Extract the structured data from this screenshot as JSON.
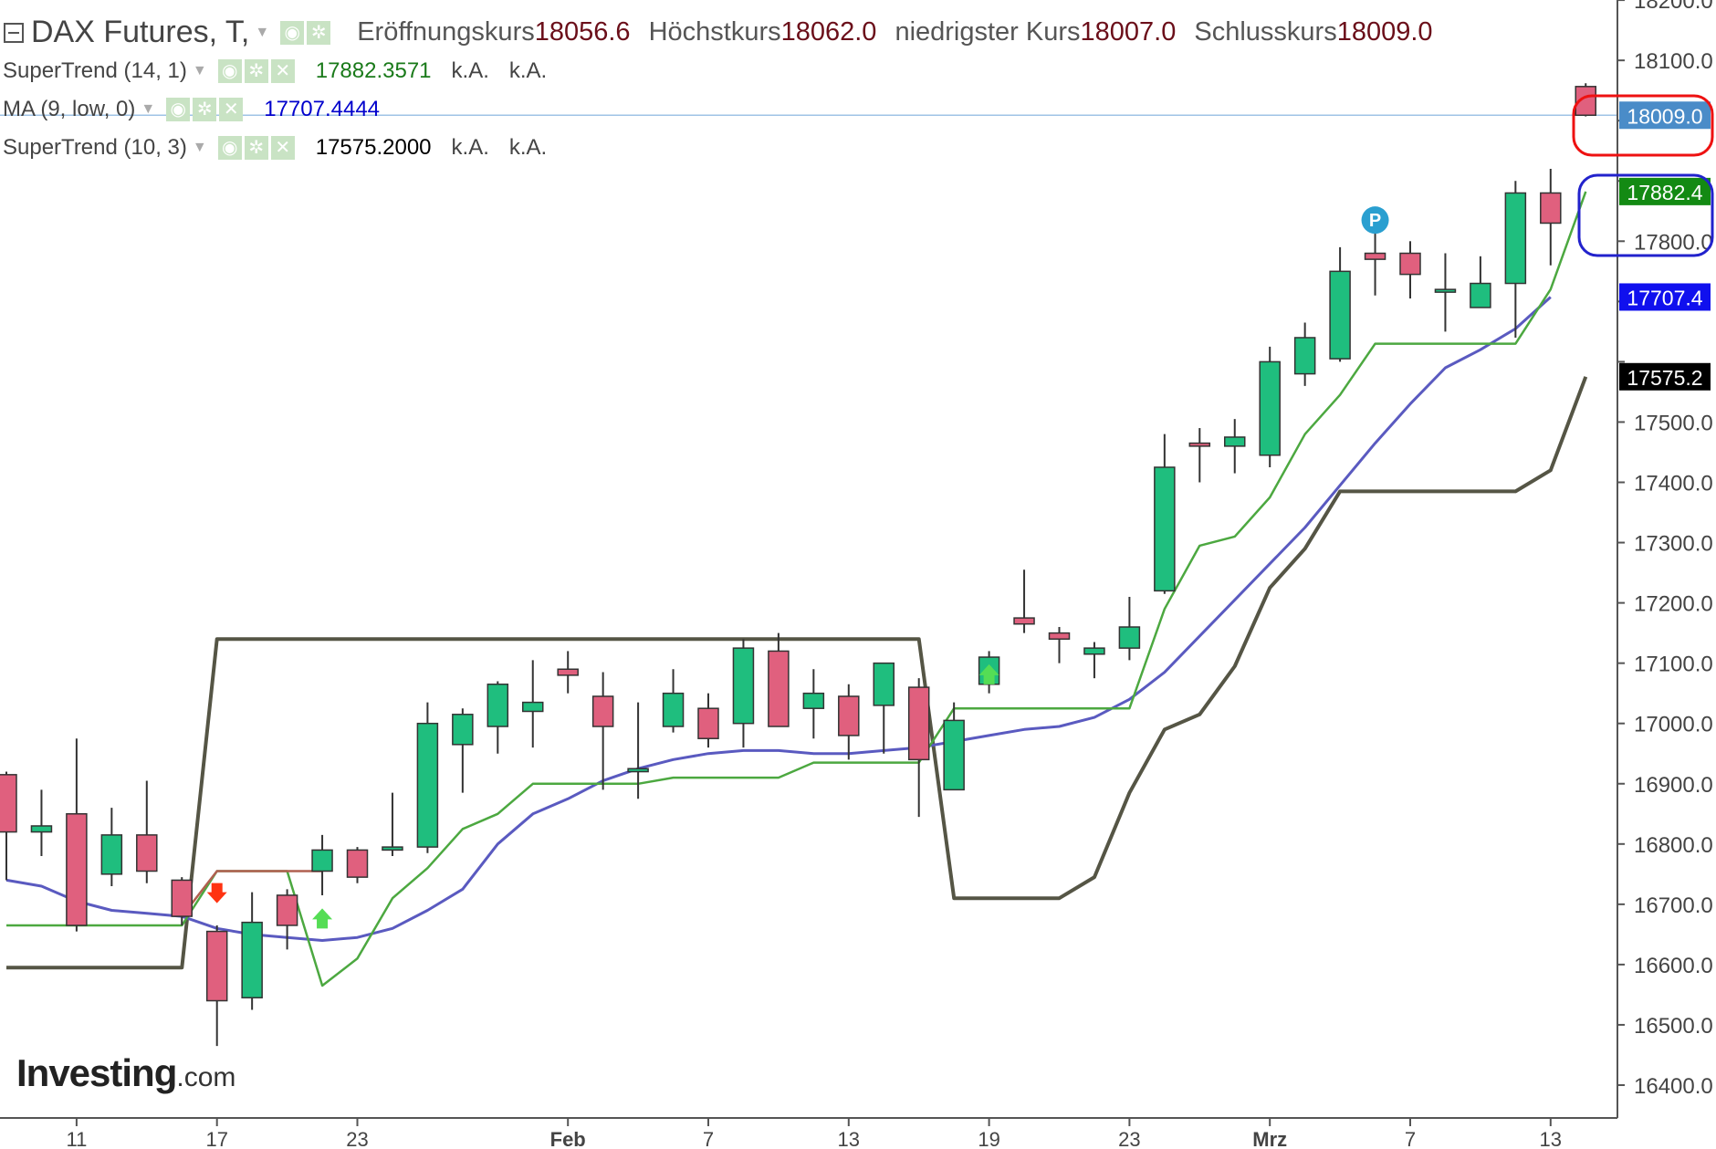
{
  "header": {
    "title": "DAX Futures, T,",
    "ohlc": [
      {
        "label": "Eröffnungskurs",
        "value": "18056.6"
      },
      {
        "label": "Höchstkurs",
        "value": "18062.0"
      },
      {
        "label": "niedrigster Kurs",
        "value": "18007.0"
      },
      {
        "label": "Schlusskurs",
        "value": "18009.0"
      }
    ]
  },
  "indicators": [
    {
      "name": "SuperTrend (14, 1)",
      "value": "17882.3571",
      "v2": "k.A.",
      "v3": "k.A.",
      "color": "#1a7a1a"
    },
    {
      "name": "MA (9, low, 0)",
      "value": "17707.4444",
      "v2": "",
      "v3": "",
      "color": "#0000cc"
    },
    {
      "name": "SuperTrend (10, 3)",
      "value": "17575.2000",
      "v2": "k.A.",
      "v3": "k.A.",
      "color": "#000000"
    }
  ],
  "brand": {
    "name": "Investing",
    "suffix": ".com"
  },
  "colors": {
    "up": "#1fbe7e",
    "down": "#e0607e",
    "st14": "#4ca840",
    "st14_down": "#b06050",
    "ma": "#5a5ac0",
    "st10": "#555545",
    "price_tag": "#4a8cc8",
    "st14_tag": "#138a13",
    "ma_tag": "#1010ee",
    "st10_tag": "#000000",
    "circle_red": "#ee1111",
    "circle_blue": "#2222cc",
    "p_marker": "#2a9fd0"
  },
  "chart_data": {
    "type": "candlestick",
    "x_tick_labels": [
      "11",
      "17",
      "23",
      "Feb",
      "7",
      "13",
      "19",
      "23",
      "Mrz",
      "7",
      "13"
    ],
    "y_ticks": [
      16400,
      16500,
      16600,
      16700,
      16800,
      16900,
      17000,
      17100,
      17200,
      17300,
      17400,
      17500,
      17600,
      17700,
      17800,
      17900,
      18000,
      18100,
      18200
    ],
    "y_tick_labels": [
      "16400.0",
      "16500.0",
      "16600.0",
      "16700.0",
      "16800.0",
      "16900.0",
      "17000.0",
      "17100.0",
      "17200.0",
      "17300.0",
      "17400.0",
      "17500.0",
      "",
      "",
      "17800.0",
      "",
      "",
      "18100.0",
      "18200.0"
    ],
    "ylim": [
      16350,
      18210
    ],
    "price_tags": [
      {
        "label": "18009.0",
        "value": 18009
      },
      {
        "label": "17882.4",
        "value": 17882.4
      },
      {
        "label": "17707.4",
        "value": 17707.4
      },
      {
        "label": "17575.2",
        "value": 17575.2
      }
    ],
    "candles": [
      {
        "o": 16915,
        "h": 16920,
        "l": 16740,
        "c": 16820
      },
      {
        "o": 16820,
        "h": 16890,
        "l": 16780,
        "c": 16830
      },
      {
        "o": 16850,
        "h": 16975,
        "l": 16655,
        "c": 16665
      },
      {
        "o": 16750,
        "h": 16860,
        "l": 16730,
        "c": 16815
      },
      {
        "o": 16815,
        "h": 16905,
        "l": 16735,
        "c": 16755
      },
      {
        "o": 16740,
        "h": 16745,
        "l": 16665,
        "c": 16680
      },
      {
        "o": 16655,
        "h": 16665,
        "l": 16465,
        "c": 16540
      },
      {
        "o": 16545,
        "h": 16720,
        "l": 16525,
        "c": 16670
      },
      {
        "o": 16715,
        "h": 16725,
        "l": 16625,
        "c": 16665
      },
      {
        "o": 16755,
        "h": 16815,
        "l": 16715,
        "c": 16790
      },
      {
        "o": 16790,
        "h": 16795,
        "l": 16735,
        "c": 16745
      },
      {
        "o": 16790,
        "h": 16885,
        "l": 16780,
        "c": 16795
      },
      {
        "o": 16795,
        "h": 17035,
        "l": 16785,
        "c": 17000
      },
      {
        "o": 16965,
        "h": 17025,
        "l": 16885,
        "c": 17015
      },
      {
        "o": 16995,
        "h": 17070,
        "l": 16950,
        "c": 17065
      },
      {
        "o": 17020,
        "h": 17105,
        "l": 16960,
        "c": 17035
      },
      {
        "o": 17090,
        "h": 17120,
        "l": 17050,
        "c": 17080
      },
      {
        "o": 17045,
        "h": 17085,
        "l": 16890,
        "c": 16995
      },
      {
        "o": 16920,
        "h": 17035,
        "l": 16875,
        "c": 16925
      },
      {
        "o": 16995,
        "h": 17090,
        "l": 16985,
        "c": 17050
      },
      {
        "o": 17025,
        "h": 17050,
        "l": 16960,
        "c": 16975
      },
      {
        "o": 17000,
        "h": 17140,
        "l": 16960,
        "c": 17125
      },
      {
        "o": 17120,
        "h": 17150,
        "l": 16995,
        "c": 16995
      },
      {
        "o": 17025,
        "h": 17090,
        "l": 16975,
        "c": 17050
      },
      {
        "o": 17045,
        "h": 17065,
        "l": 16940,
        "c": 16980
      },
      {
        "o": 17030,
        "h": 17095,
        "l": 16950,
        "c": 17100
      },
      {
        "o": 17060,
        "h": 17075,
        "l": 16845,
        "c": 16940
      },
      {
        "o": 16890,
        "h": 17035,
        "l": 16890,
        "c": 17005
      },
      {
        "o": 17065,
        "h": 17120,
        "l": 17050,
        "c": 17110
      },
      {
        "o": 17175,
        "h": 17255,
        "l": 17150,
        "c": 17165
      },
      {
        "o": 17150,
        "h": 17160,
        "l": 17100,
        "c": 17140
      },
      {
        "o": 17115,
        "h": 17135,
        "l": 17075,
        "c": 17125
      },
      {
        "o": 17125,
        "h": 17210,
        "l": 17105,
        "c": 17160
      },
      {
        "o": 17220,
        "h": 17480,
        "l": 17215,
        "c": 17425
      },
      {
        "o": 17465,
        "h": 17490,
        "l": 17400,
        "c": 17460
      },
      {
        "o": 17460,
        "h": 17505,
        "l": 17415,
        "c": 17475
      },
      {
        "o": 17445,
        "h": 17625,
        "l": 17425,
        "c": 17600
      },
      {
        "o": 17580,
        "h": 17665,
        "l": 17560,
        "c": 17640
      },
      {
        "o": 17605,
        "h": 17790,
        "l": 17600,
        "c": 17750
      },
      {
        "o": 17780,
        "h": 17850,
        "l": 17710,
        "c": 17770
      },
      {
        "o": 17780,
        "h": 17800,
        "l": 17705,
        "c": 17745
      },
      {
        "o": 17720,
        "h": 17780,
        "l": 17650,
        "c": 17720
      },
      {
        "o": 17690,
        "h": 17775,
        "l": 17690,
        "c": 17730
      },
      {
        "o": 17730,
        "h": 17900,
        "l": 17640,
        "c": 17880
      },
      {
        "o": 17880,
        "h": 17920,
        "l": 17760,
        "c": 17830
      },
      {
        "o": 18056.6,
        "h": 18062,
        "l": 18007,
        "c": 18009
      }
    ],
    "series": [
      {
        "name": "SuperTrend (14, 1)",
        "values": [
          16665,
          16665,
          16665,
          16665,
          16665,
          16665,
          16755,
          16755,
          16755,
          16565,
          16610,
          16710,
          16760,
          16825,
          16850,
          16900,
          16900,
          16900,
          16900,
          16910,
          16910,
          16910,
          16910,
          16935,
          16935,
          16935,
          16935,
          17025,
          17025,
          17025,
          17025,
          17025,
          17025,
          17190,
          17295,
          17310,
          17375,
          17480,
          17545,
          17630,
          17630,
          17630,
          17630,
          17630,
          17720,
          17882.4
        ],
        "stepdown": [
          null,
          null,
          null,
          null,
          null,
          null,
          16755,
          16755,
          16755,
          16755
        ]
      },
      {
        "name": "MA (9, low, 0)",
        "values": [
          16740,
          16730,
          16705,
          16690,
          16685,
          16680,
          16660,
          16650,
          16645,
          16640,
          16645,
          16660,
          16690,
          16725,
          16800,
          16850,
          16875,
          16905,
          16925,
          16940,
          16950,
          16955,
          16955,
          16950,
          16950,
          16955,
          16960,
          16970,
          16980,
          16990,
          16995,
          17010,
          17040,
          17085,
          17145,
          17205,
          17265,
          17325,
          17395,
          17465,
          17530,
          17590,
          17620,
          17655,
          17707.4
        ],
        "offset": 0
      },
      {
        "name": "SuperTrend (10, 3)",
        "values": [
          16595,
          16595,
          16595,
          16595,
          16595,
          16595,
          17140,
          17140,
          17140,
          17140,
          17140,
          17140,
          17140,
          17140,
          17140,
          17140,
          17140,
          17140,
          17140,
          17140,
          17140,
          17140,
          17140,
          17140,
          17140,
          17140,
          17140,
          16710,
          16710,
          16710,
          16710,
          16745,
          16885,
          16990,
          17015,
          17095,
          17225,
          17290,
          17385,
          17385,
          17385,
          17385,
          17385,
          17385,
          17420,
          17575.2
        ]
      }
    ],
    "signals": [
      {
        "type": "sell",
        "index": 6
      },
      {
        "type": "buy",
        "index": 9
      },
      {
        "type": "buy",
        "index": 28
      }
    ],
    "marker": {
      "label": "P",
      "index": 39,
      "value": 17835
    }
  }
}
